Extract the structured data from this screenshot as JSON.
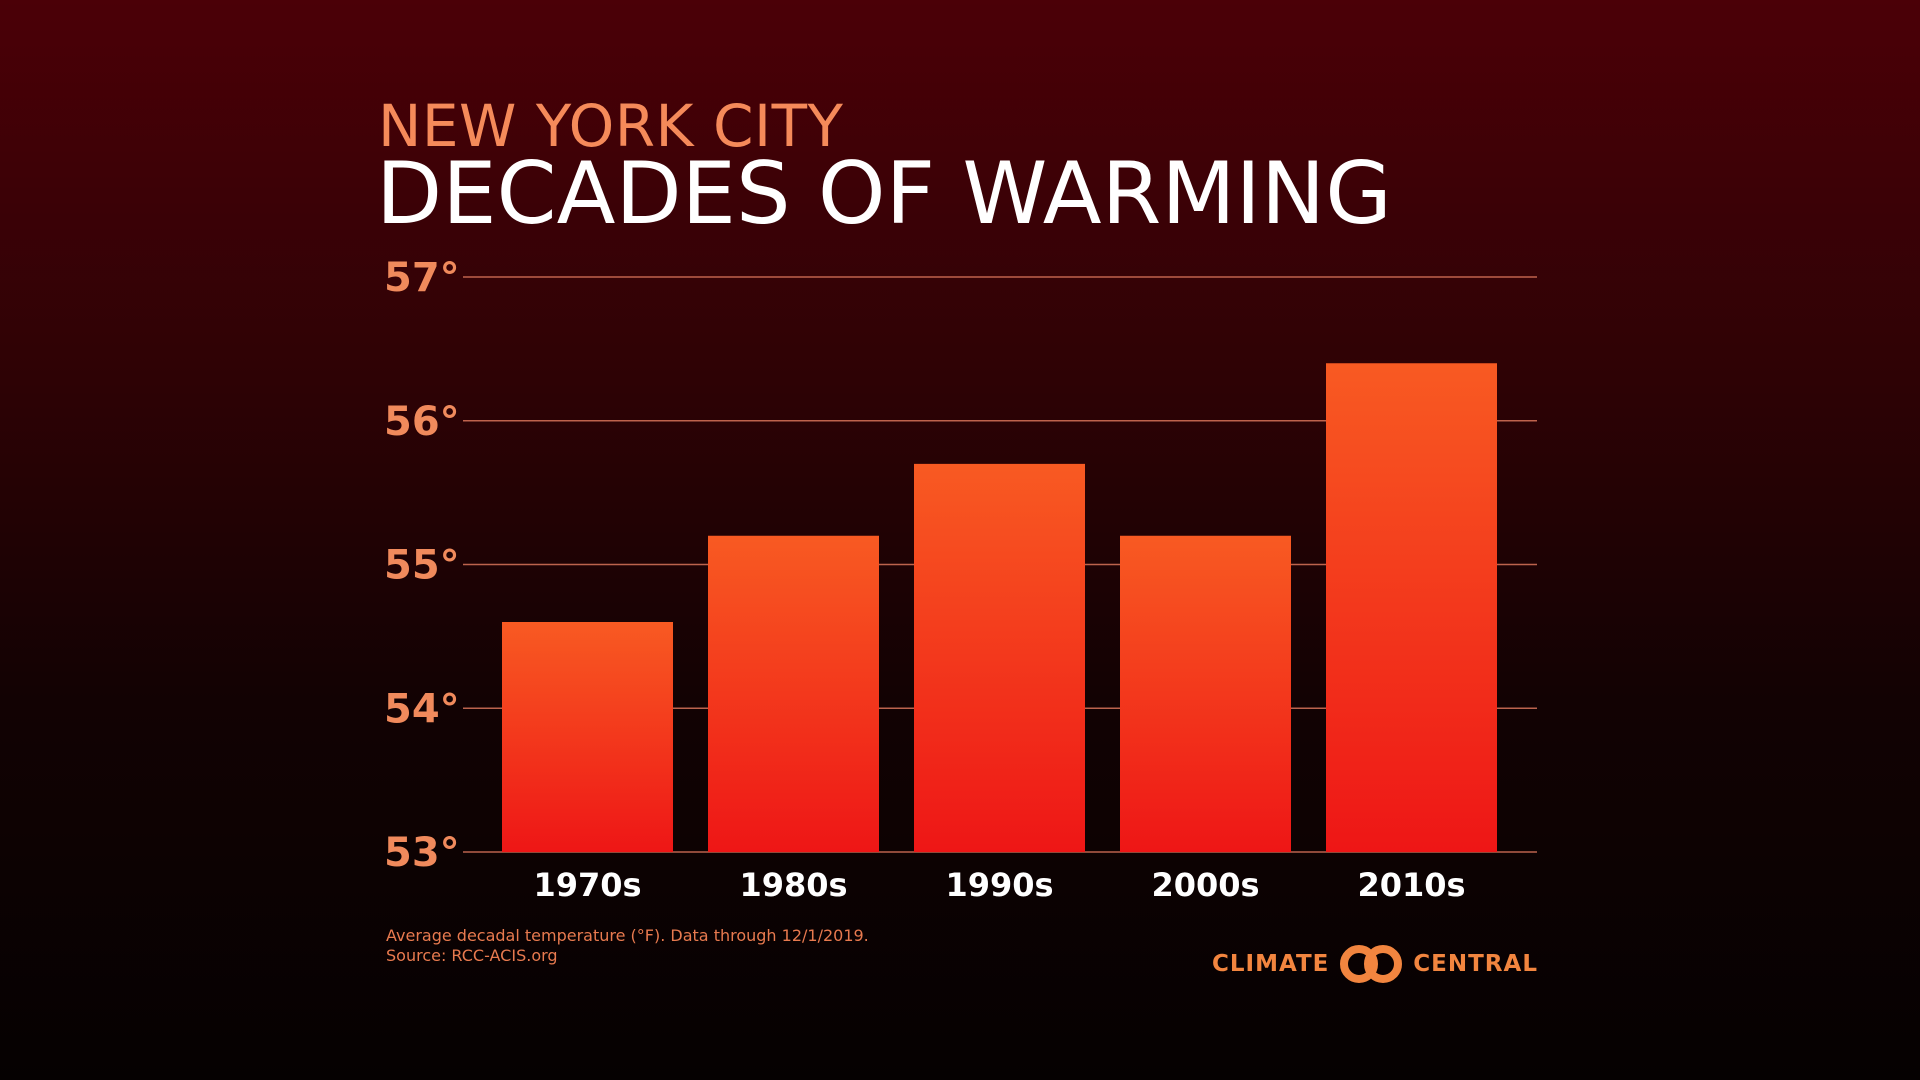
{
  "header": {
    "subtitle": "NEW YORK CITY",
    "title": "DECADES OF WARMING"
  },
  "chart_data": {
    "type": "bar",
    "title": "DECADES OF WARMING",
    "subtitle": "NEW YORK CITY",
    "categories": [
      "1970s",
      "1980s",
      "1990s",
      "2000s",
      "2010s"
    ],
    "values": [
      54.6,
      55.2,
      55.7,
      55.2,
      56.4
    ],
    "ylim": [
      53,
      57
    ],
    "yticks": [
      53,
      54,
      55,
      56,
      57
    ],
    "ytick_labels": [
      "53°",
      "54°",
      "55°",
      "56°",
      "57°"
    ],
    "grid": true,
    "xlabel": "",
    "ylabel": ""
  },
  "footnote": {
    "line1": "Average decadal temperature (°F). Data through 12/1/2019.",
    "line2": "Source: RCC-ACIS.org"
  },
  "logo": {
    "left_word": "CLIMATE",
    "right_word": "CENTRAL",
    "icon": "climate-central-logo-icon"
  },
  "colors": {
    "background_top": "#4b0007",
    "background_bottom": "#050101",
    "subtitle": "#f58a5a",
    "title": "#ffffff",
    "tick_label": "#f08a5c",
    "gridline": "#d9755a",
    "bar_top": "#f85a22",
    "bar_bottom": "#ee1616",
    "category_label": "#ffffff",
    "footnote": "#e87a4f",
    "logo": "#f2853f"
  }
}
